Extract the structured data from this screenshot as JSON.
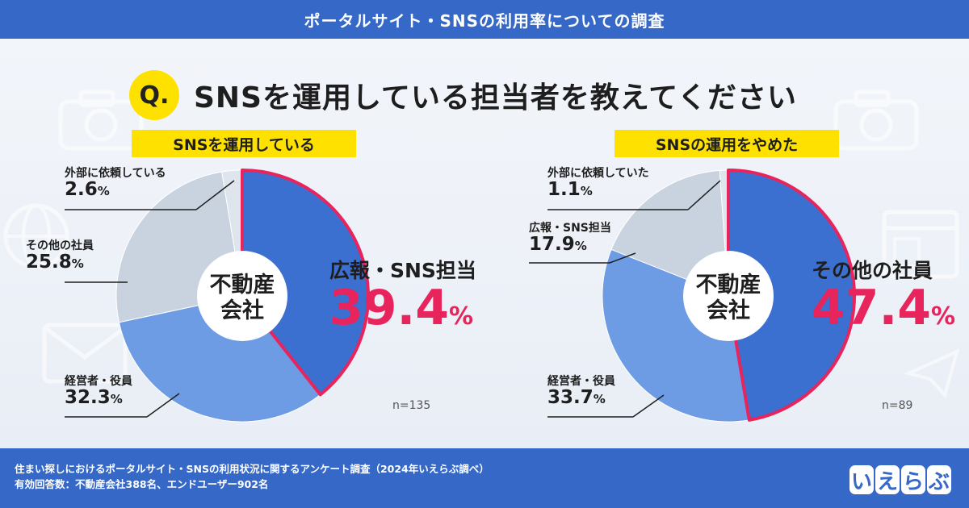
{
  "header": {
    "title": "ポータルサイト・SNSの利用率についての調査"
  },
  "question": {
    "badge": "Q.",
    "text": "SNSを運用している担当者を教えてください"
  },
  "chart_data": [
    {
      "type": "pie",
      "title": "SNSを運用している",
      "center_label": [
        "不動産",
        "会社"
      ],
      "n_label": "n=135",
      "slices": [
        {
          "name": "広報・SNS担当",
          "value": 39.4,
          "color": "#3b6fd0"
        },
        {
          "name": "経営者・役員",
          "value": 32.3,
          "color": "#6d9be4"
        },
        {
          "name": "その他の社員",
          "value": 25.8,
          "color": "#c9d3e0"
        },
        {
          "name": "外部に依頼している",
          "value": 2.6,
          "color": "#dfe5ed"
        }
      ],
      "highlight": {
        "name": "広報・SNS担当",
        "value": "39.4",
        "unit": "%"
      }
    },
    {
      "type": "pie",
      "title": "SNSの運用をやめた",
      "center_label": [
        "不動産",
        "会社"
      ],
      "n_label": "n=89",
      "slices": [
        {
          "name": "その他の社員",
          "value": 47.4,
          "color": "#3b6fd0"
        },
        {
          "name": "経営者・役員",
          "value": 33.7,
          "color": "#6d9be4"
        },
        {
          "name": "広報・SNS担当",
          "value": 17.9,
          "color": "#c9d3e0"
        },
        {
          "name": "外部に依頼していた",
          "value": 1.1,
          "color": "#dfe5ed"
        }
      ],
      "highlight": {
        "name": "その他の社員",
        "value": "47.4",
        "unit": "%"
      }
    }
  ],
  "labels": {
    "left": {
      "ext": {
        "name": "外部に依頼している",
        "value": "2.6",
        "unit": "%"
      },
      "other": {
        "name": "その他の社員",
        "value": "25.8",
        "unit": "%"
      },
      "exec": {
        "name": "経営者・役員",
        "value": "32.3",
        "unit": "%"
      }
    },
    "right": {
      "ext": {
        "name": "外部に依頼していた",
        "value": "1.1",
        "unit": "%"
      },
      "pr": {
        "name": "広報・SNS担当",
        "value": "17.9",
        "unit": "%"
      },
      "exec": {
        "name": "経営者・役員",
        "value": "33.7",
        "unit": "%"
      }
    }
  },
  "footer": {
    "line1": "住まい探しにおけるポータルサイト・SNSの利用状況に関するアンケート調査（2024年いえらぶ調べ）",
    "line2": "有効回答数：不動産会社388名、エンドユーザー902名"
  },
  "logo": {
    "chars": [
      "い",
      "え",
      "ら",
      "ぶ"
    ]
  },
  "colors": {
    "brand": "#3568c7",
    "accent": "#e8245d",
    "yellow": "#ffe100"
  }
}
